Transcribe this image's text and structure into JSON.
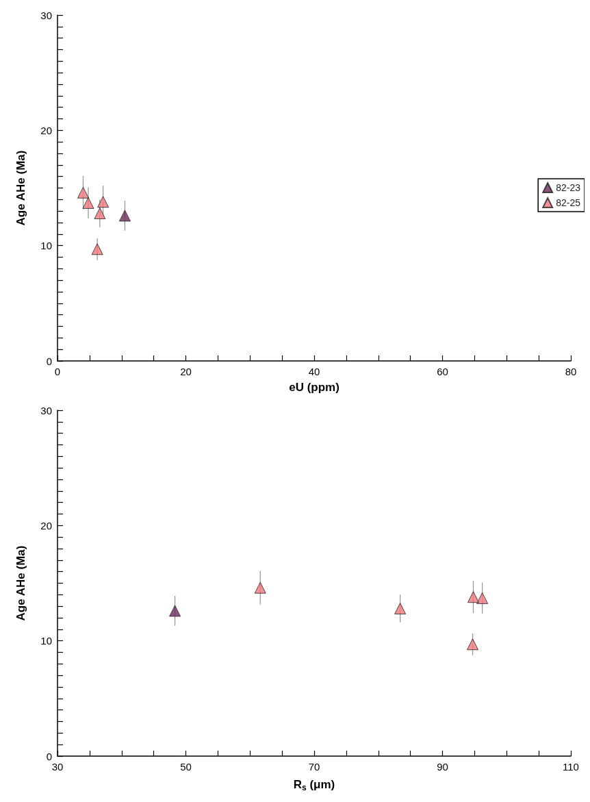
{
  "chart_data": [
    {
      "type": "scatter",
      "xlabel": "eU (ppm)",
      "ylabel": "Age AHe (Ma)",
      "marker": "triangle",
      "legend": "right",
      "grid": false,
      "xlim": [
        0,
        80
      ],
      "xticks": [
        0,
        {
          "value": 5,
          "label": null
        },
        {
          "value": 10,
          "label": null
        },
        {
          "value": 15,
          "label": null
        },
        20,
        {
          "value": 25,
          "label": null
        },
        {
          "value": 30,
          "label": null
        },
        {
          "value": 35,
          "label": null
        },
        40,
        {
          "value": 45,
          "label": null
        },
        {
          "value": 50,
          "label": null
        },
        {
          "value": 55,
          "label": null
        },
        60,
        {
          "value": 65,
          "label": null
        },
        {
          "value": 70,
          "label": null
        },
        {
          "value": 75,
          "label": null
        },
        80
      ],
      "ylim": [
        0,
        30
      ],
      "yticks": [
        0,
        {
          "value": 1,
          "label": null
        },
        {
          "value": 2,
          "label": null
        },
        {
          "value": 3,
          "label": null
        },
        {
          "value": 4,
          "label": null
        },
        {
          "value": 5,
          "label": null
        },
        {
          "value": 6,
          "label": null
        },
        {
          "value": 7,
          "label": null
        },
        {
          "value": 8,
          "label": null
        },
        {
          "value": 9,
          "label": null
        },
        10,
        {
          "value": 11,
          "label": null
        },
        {
          "value": 12,
          "label": null
        },
        {
          "value": 13,
          "label": null
        },
        {
          "value": 14,
          "label": null
        },
        {
          "value": 15,
          "label": null
        },
        {
          "value": 16,
          "label": null
        },
        {
          "value": 17,
          "label": null
        },
        {
          "value": 18,
          "label": null
        },
        {
          "value": 19,
          "label": null
        },
        20,
        {
          "value": 21,
          "label": null
        },
        {
          "value": 22,
          "label": null
        },
        {
          "value": 23,
          "label": null
        },
        {
          "value": 24,
          "label": null
        },
        {
          "value": 25,
          "label": null
        },
        {
          "value": 26,
          "label": null
        },
        {
          "value": 27,
          "label": null
        },
        {
          "value": 28,
          "label": null
        },
        {
          "value": 29,
          "label": null
        },
        30
      ],
      "series": [
        {
          "name": "82-23",
          "color": "#6e2a5e",
          "x": [
            10.5
          ],
          "values": [
            12.6
          ],
          "errors": [
            1.3
          ]
        },
        {
          "name": "82-25",
          "color": "#f2777b",
          "x": [
            4.0,
            4.8,
            7.1,
            6.6,
            6.2
          ],
          "values": [
            14.6,
            13.7,
            13.8,
            12.8,
            9.7
          ],
          "errors": [
            1.45,
            1.35,
            1.4,
            1.2,
            0.95
          ]
        }
      ]
    },
    {
      "type": "scatter",
      "xlabel": "R$_{s}$ (μm)",
      "ylabel": "Age AHe (Ma)",
      "marker": "triangle",
      "grid": false,
      "xlim": [
        30,
        110
      ],
      "xticks": [
        30,
        {
          "value": 35,
          "label": null
        },
        {
          "value": 40,
          "label": null
        },
        {
          "value": 45,
          "label": null
        },
        50,
        {
          "value": 55,
          "label": null
        },
        {
          "value": 60,
          "label": null
        },
        {
          "value": 65,
          "label": null
        },
        70,
        {
          "value": 75,
          "label": null
        },
        {
          "value": 80,
          "label": null
        },
        {
          "value": 85,
          "label": null
        },
        90,
        {
          "value": 95,
          "label": null
        },
        {
          "value": 100,
          "label": null
        },
        {
          "value": 105,
          "label": null
        },
        110
      ],
      "ylim": [
        0,
        30
      ],
      "yticks": [
        0,
        {
          "value": 1,
          "label": null
        },
        {
          "value": 2,
          "label": null
        },
        {
          "value": 3,
          "label": null
        },
        {
          "value": 4,
          "label": null
        },
        {
          "value": 5,
          "label": null
        },
        {
          "value": 6,
          "label": null
        },
        {
          "value": 7,
          "label": null
        },
        {
          "value": 8,
          "label": null
        },
        {
          "value": 9,
          "label": null
        },
        10,
        {
          "value": 11,
          "label": null
        },
        {
          "value": 12,
          "label": null
        },
        {
          "value": 13,
          "label": null
        },
        {
          "value": 14,
          "label": null
        },
        {
          "value": 15,
          "label": null
        },
        {
          "value": 16,
          "label": null
        },
        {
          "value": 17,
          "label": null
        },
        {
          "value": 18,
          "label": null
        },
        {
          "value": 19,
          "label": null
        },
        20,
        {
          "value": 21,
          "label": null
        },
        {
          "value": 22,
          "label": null
        },
        {
          "value": 23,
          "label": null
        },
        {
          "value": 24,
          "label": null
        },
        {
          "value": 25,
          "label": null
        },
        {
          "value": 26,
          "label": null
        },
        {
          "value": 27,
          "label": null
        },
        {
          "value": 28,
          "label": null
        },
        {
          "value": 29,
          "label": null
        },
        30
      ],
      "series": [
        {
          "color": "#6e2a5e",
          "x": [
            48.3
          ],
          "values": [
            12.6
          ],
          "errors": [
            1.3
          ]
        },
        {
          "color": "#f2777b",
          "x": [
            61.6,
            96.2,
            94.8,
            83.4,
            94.7
          ],
          "values": [
            14.6,
            13.7,
            13.8,
            12.8,
            9.7
          ],
          "errors": [
            1.45,
            1.35,
            1.4,
            1.2,
            0.95
          ]
        }
      ]
    }
  ]
}
